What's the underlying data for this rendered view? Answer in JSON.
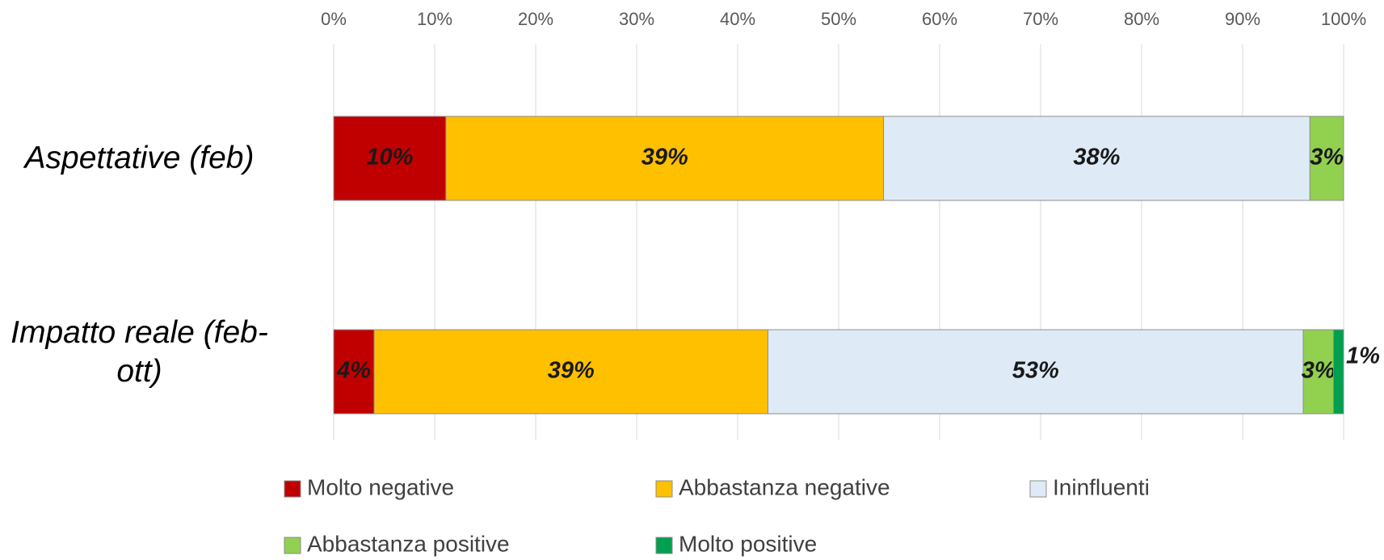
{
  "chart_data": {
    "type": "bar",
    "orientation": "horizontal",
    "stacking": "percent",
    "categories": [
      "Aspettative (feb)",
      "Impatto reale (feb-ott)"
    ],
    "series": [
      {
        "name": "Molto negative",
        "color": "#c00000",
        "values": [
          10,
          4
        ],
        "value_labels": [
          "10%",
          "4%"
        ]
      },
      {
        "name": "Abbastanza negative",
        "color": "#ffc000",
        "values": [
          39,
          39
        ],
        "value_labels": [
          "39%",
          "39%"
        ]
      },
      {
        "name": "Ininfluenti",
        "color": "#deebf7",
        "values": [
          38,
          53
        ],
        "value_labels": [
          "38%",
          "53%"
        ]
      },
      {
        "name": "Abbastanza positive",
        "color": "#92d050",
        "values": [
          3,
          3
        ],
        "value_labels": [
          "3%",
          "3%"
        ]
      },
      {
        "name": "Molto positive",
        "color": "#00a050",
        "values": [
          0,
          1
        ],
        "value_labels": [
          null,
          "1%"
        ]
      }
    ],
    "xlim": [
      0,
      100
    ],
    "xticks": [
      {
        "value": 0,
        "label": "0%"
      },
      {
        "value": 10,
        "label": "10%"
      },
      {
        "value": 20,
        "label": "20%"
      },
      {
        "value": 30,
        "label": "30%"
      },
      {
        "value": 40,
        "label": "40%"
      },
      {
        "value": 50,
        "label": "50%"
      },
      {
        "value": 60,
        "label": "60%"
      },
      {
        "value": 70,
        "label": "70%"
      },
      {
        "value": 80,
        "label": "80%"
      },
      {
        "value": 90,
        "label": "90%"
      },
      {
        "value": 100,
        "label": "100%"
      }
    ],
    "grid": true,
    "legend": "bottom"
  }
}
